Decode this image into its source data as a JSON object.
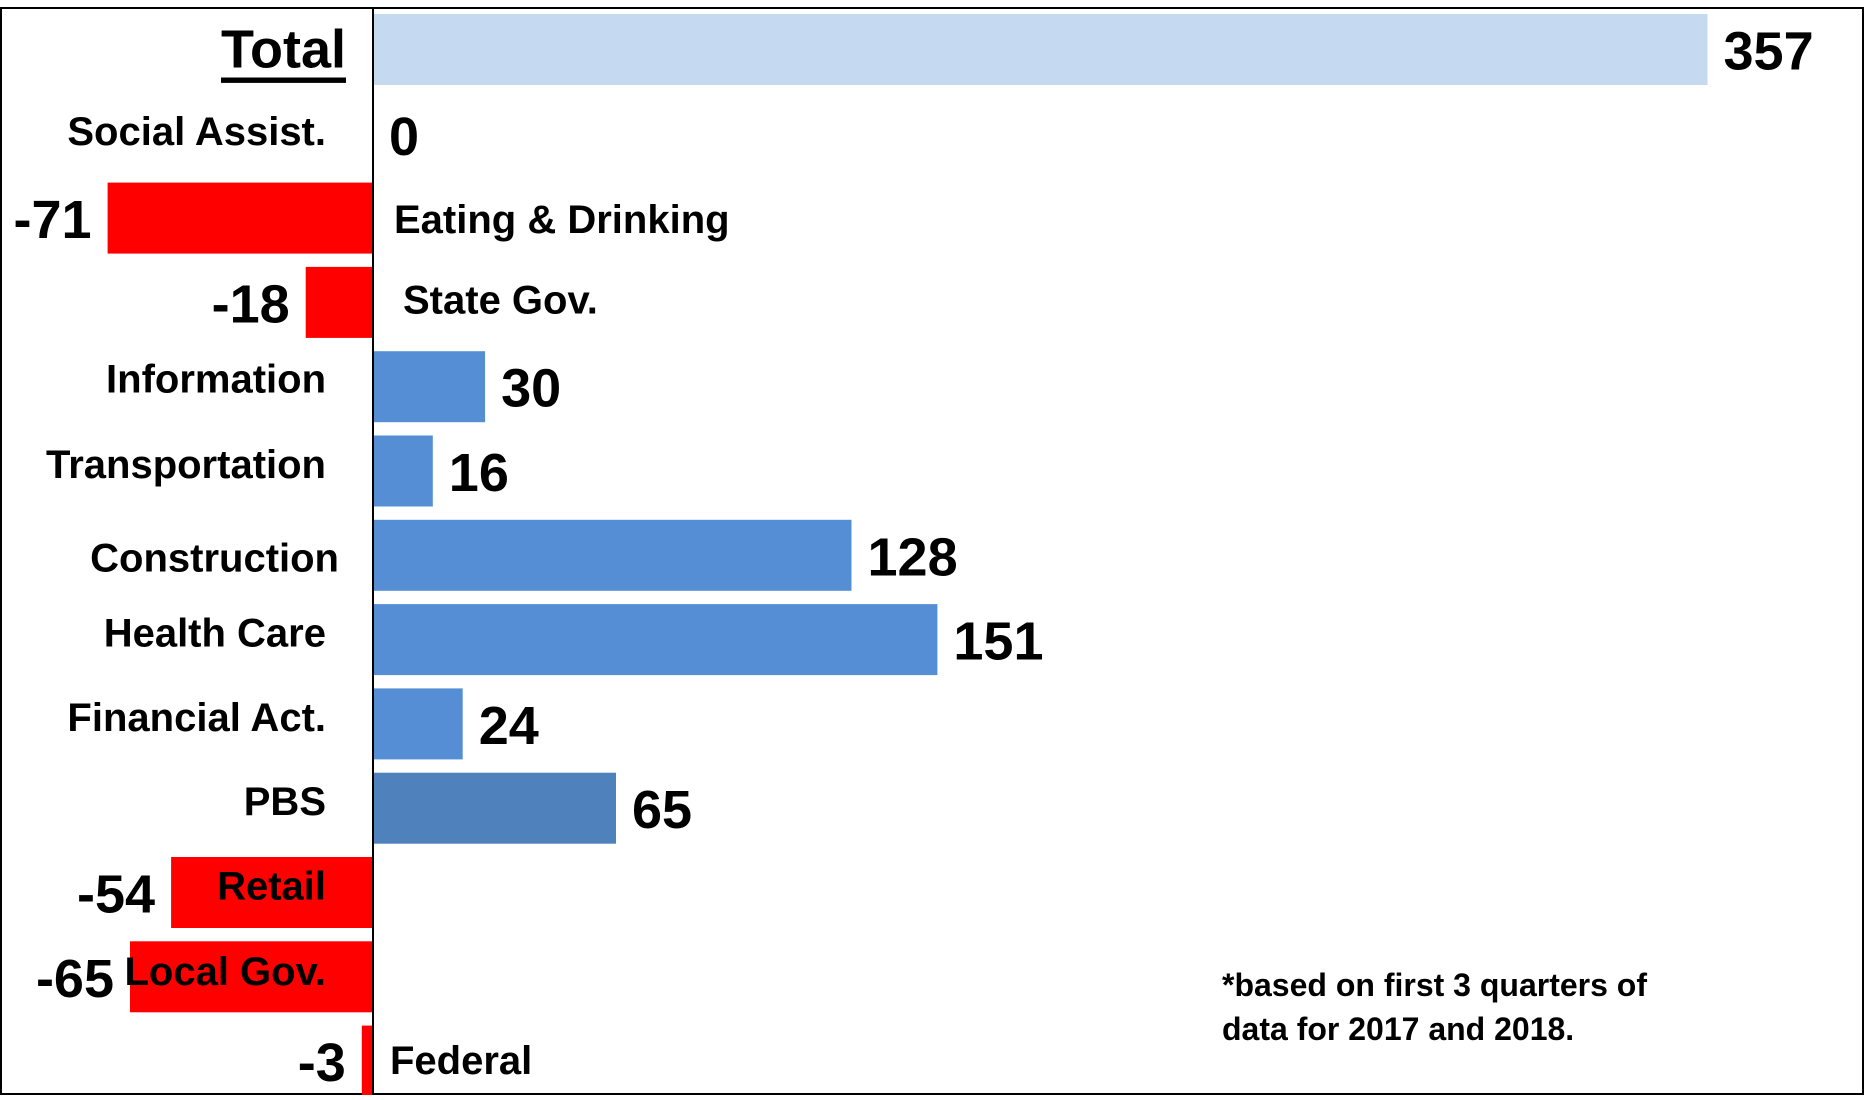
{
  "chart_data": {
    "type": "bar",
    "orientation": "horizontal",
    "categories": [
      "Total",
      "Social Assist.",
      "Eating & Drinking",
      "State Gov.",
      "Information",
      "Transportation",
      "Construction",
      "Health Care",
      "Financial Act.",
      "PBS",
      "Retail",
      "Local Gov.",
      "Federal"
    ],
    "values": [
      357,
      0,
      -71,
      -18,
      30,
      16,
      128,
      151,
      24,
      65,
      -54,
      -65,
      -3
    ],
    "value_labels": [
      "357",
      "0",
      "-71",
      "-18",
      "30",
      "16",
      "128",
      "151",
      "24",
      "65",
      "-54",
      "-65",
      "-3"
    ],
    "colors": [
      "#c5d9f1",
      "#558ed5",
      "#ff0000",
      "#ff0000",
      "#558ed5",
      "#558ed5",
      "#558ed5",
      "#558ed5",
      "#558ed5",
      "#4f81bd",
      "#ff0000",
      "#ff0000",
      "#ff0000"
    ],
    "xlim": [
      -100,
      400
    ],
    "grid": false,
    "legend": "none"
  },
  "footnote": {
    "line1": "*based on first 3 quarters of",
    "line2": "data for 2017 and 2018."
  }
}
